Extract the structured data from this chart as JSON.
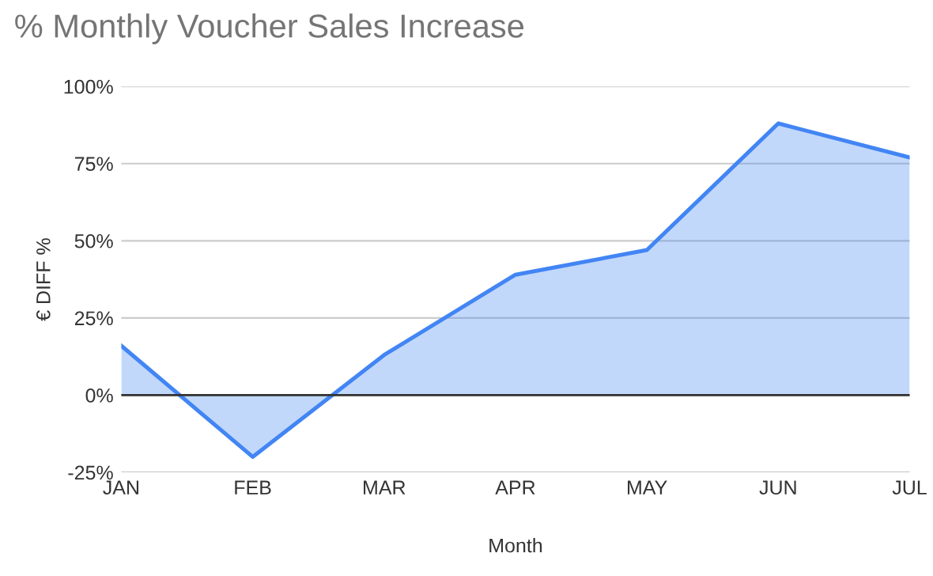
{
  "chart_data": {
    "type": "area",
    "title": "% Monthly Voucher Sales Increase",
    "xlabel": "Month",
    "ylabel": "€ DIFF %",
    "categories": [
      "JAN",
      "FEB",
      "MAR",
      "APR",
      "MAY",
      "JUN",
      "JUL"
    ],
    "series": [
      {
        "color": "#4285f4",
        "values": [
          16,
          -20,
          13,
          39,
          47,
          88,
          77
        ]
      }
    ],
    "ylim": [
      -25,
      100
    ],
    "yticks": [
      {
        "value": -25,
        "label": "-25%"
      },
      {
        "value": 0,
        "label": "0%"
      },
      {
        "value": 25,
        "label": "25%"
      },
      {
        "value": 50,
        "label": "50%"
      },
      {
        "value": 75,
        "label": "75%"
      },
      {
        "value": 100,
        "label": "100%"
      }
    ],
    "ref_lines": [
      {
        "axis": "y",
        "value": 0,
        "color": "#333333"
      }
    ],
    "grid": "y",
    "legend": false
  }
}
